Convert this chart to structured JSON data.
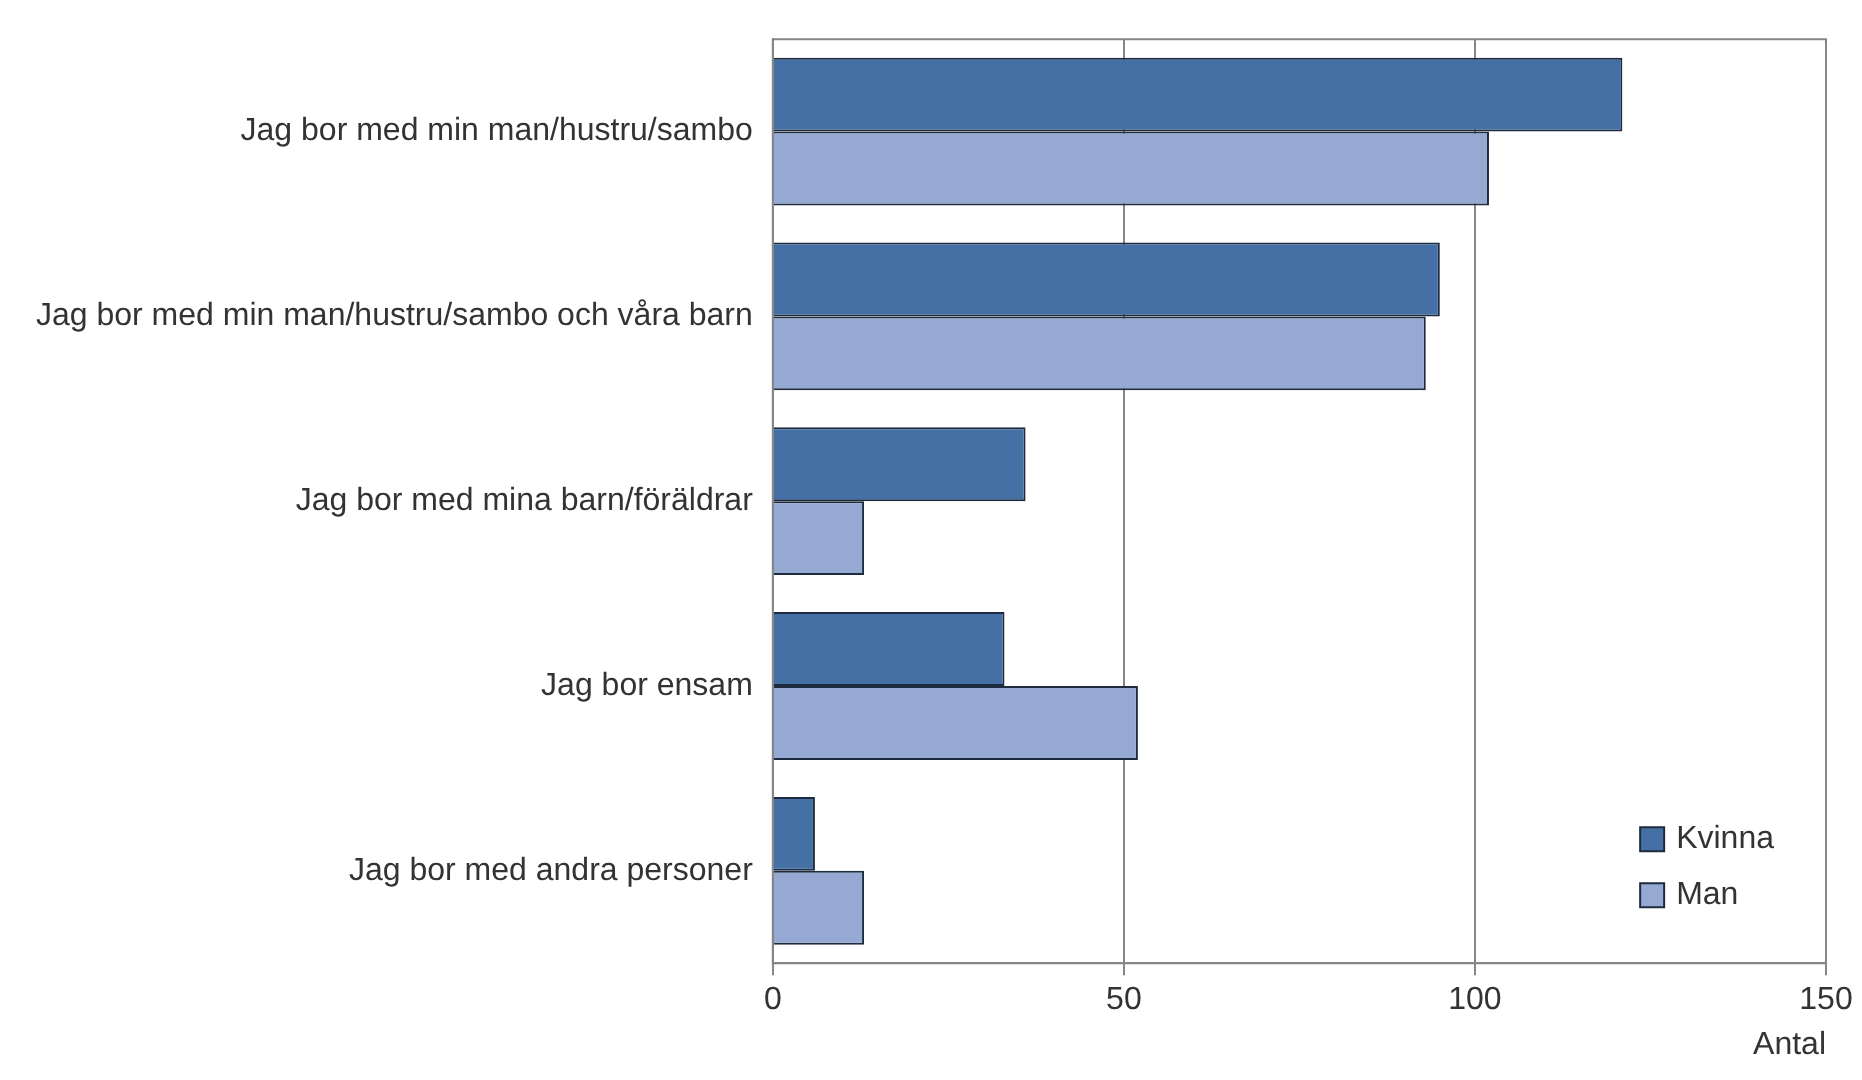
{
  "chart_data": {
    "type": "bar",
    "orientation": "horizontal",
    "categories": [
      "Jag bor med min man/hustru/sambo",
      "Jag bor med min man/hustru/sambo och våra barn",
      "Jag bor med mina barn/föräldrar",
      "Jag bor ensam",
      "Jag bor med andra personer"
    ],
    "series": [
      {
        "name": "Kvinna",
        "color": "#4470a5",
        "values": [
          121,
          95,
          36,
          33,
          6
        ]
      },
      {
        "name": "Man",
        "color": "#95a9d2",
        "values": [
          102,
          93,
          13,
          52,
          13
        ]
      }
    ],
    "xlabel": "Antal",
    "xlim": [
      0,
      150
    ],
    "xticks": [
      0,
      50,
      100,
      150
    ],
    "grid": "x",
    "legend": "bottom right"
  }
}
